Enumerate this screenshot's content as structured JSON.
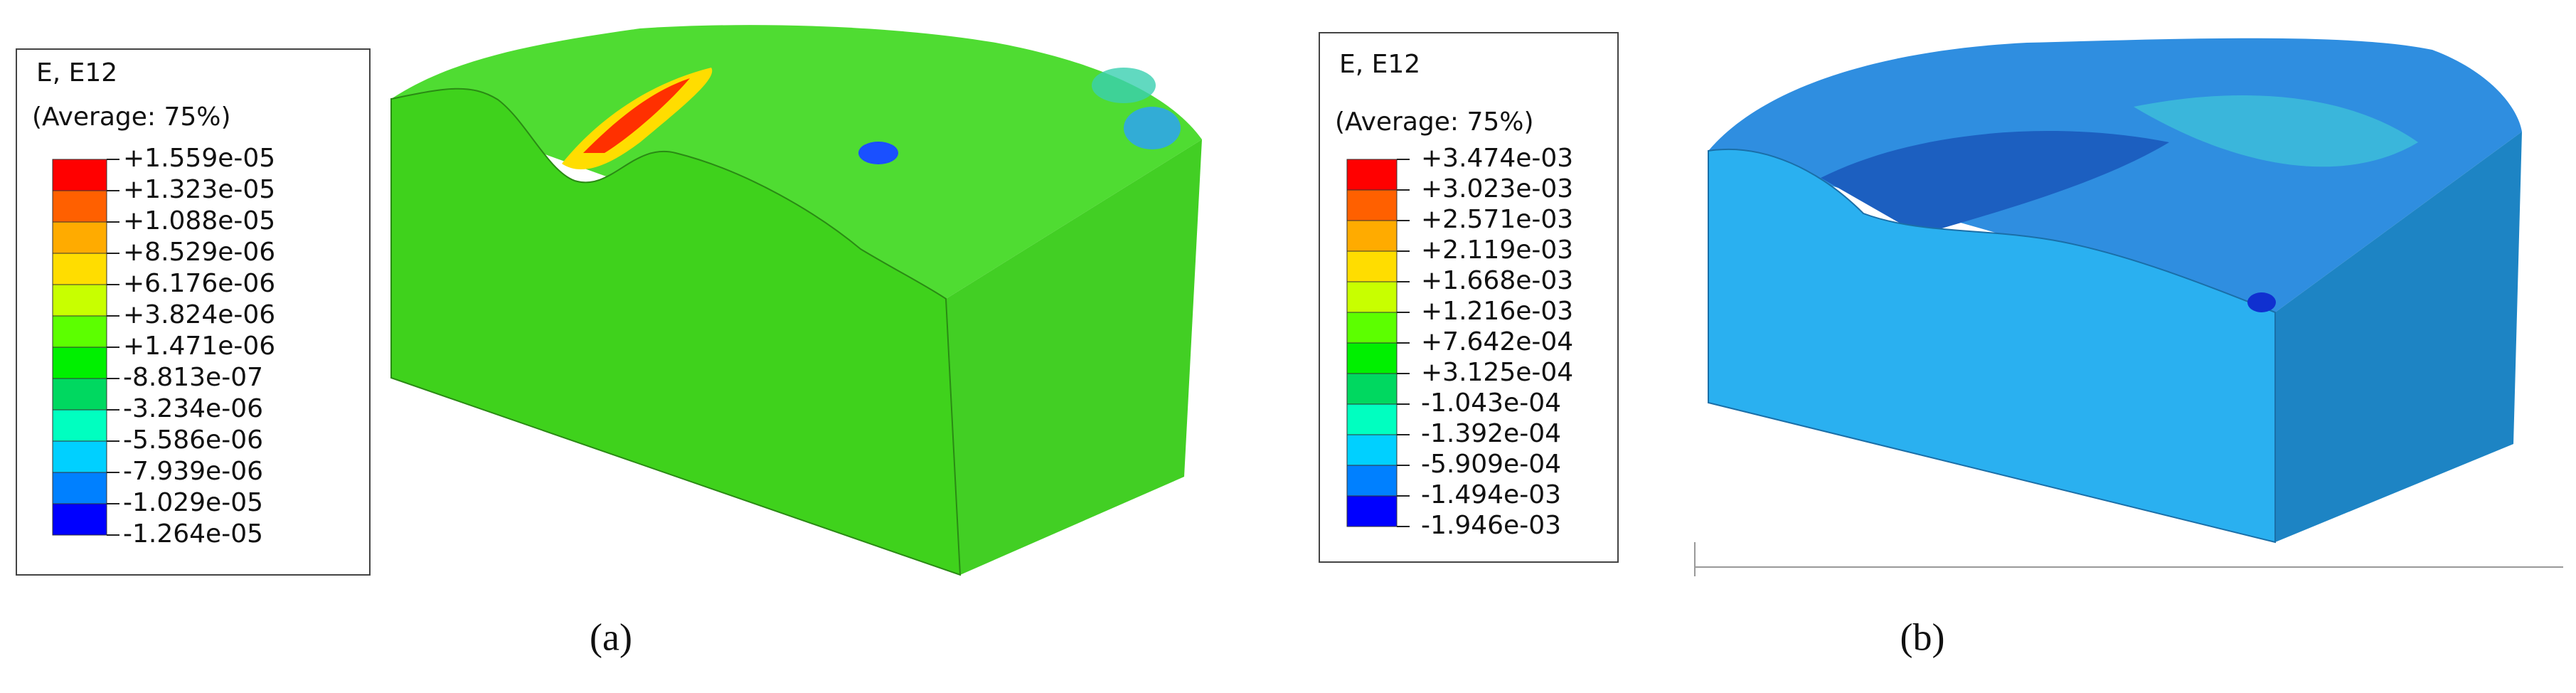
{
  "panels": [
    {
      "legend": {
        "title": "E, E12",
        "subtitle": "(Average: 75%)",
        "labels": [
          "+1.559e-05",
          "+1.323e-05",
          "+1.088e-05",
          "+8.529e-06",
          "+6.176e-06",
          "+3.824e-06",
          "+1.471e-06",
          "-8.813e-07",
          "-3.234e-06",
          "-5.586e-06",
          "-7.939e-06",
          "-1.029e-05",
          "-1.264e-05"
        ]
      },
      "caption": "(a)"
    },
    {
      "legend": {
        "title": "E, E12",
        "subtitle": "(Average: 75%)",
        "labels": [
          "+3.474e-03",
          "+3.023e-03",
          "+2.571e-03",
          "+2.119e-03",
          "+1.668e-03",
          "+1.216e-03",
          "+7.642e-04",
          "+3.125e-04",
          "-1.043e-04",
          "-1.392e-04",
          "-5.909e-04",
          "-1.494e-03",
          "-1.946e-03"
        ]
      },
      "caption": "(b)"
    }
  ]
}
